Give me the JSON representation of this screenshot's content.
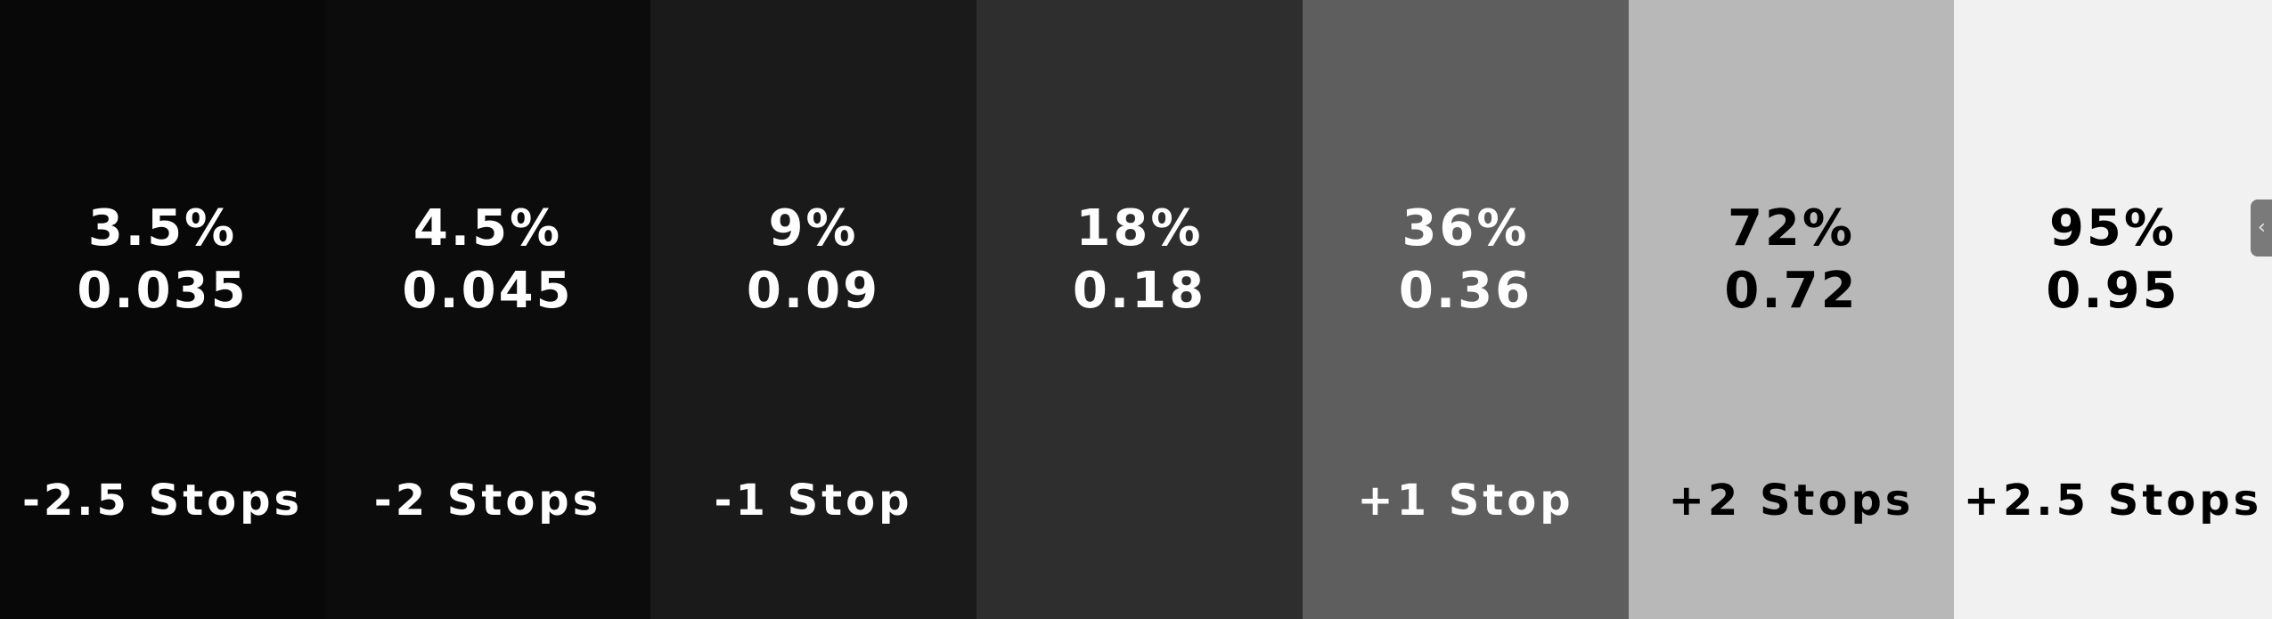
{
  "swatches": [
    {
      "percent": "3.5%",
      "decimal": "0.035",
      "stops": "-2.5 Stops",
      "bg": "#080808",
      "fg": "#ffffff"
    },
    {
      "percent": "4.5%",
      "decimal": "0.045",
      "stops": "-2 Stops",
      "bg": "#0c0c0c",
      "fg": "#ffffff"
    },
    {
      "percent": "9%",
      "decimal": "0.09",
      "stops": "-1 Stop",
      "bg": "#1a1a1a",
      "fg": "#ffffff"
    },
    {
      "percent": "18%",
      "decimal": "0.18",
      "stops": "",
      "bg": "#2e2e2e",
      "fg": "#ffffff"
    },
    {
      "percent": "36%",
      "decimal": "0.36",
      "stops": "+1 Stop",
      "bg": "#5e5e5e",
      "fg": "#ffffff"
    },
    {
      "percent": "72%",
      "decimal": "0.72",
      "stops": "+2 Stops",
      "bg": "#b8b8b8",
      "fg": "#000000"
    },
    {
      "percent": "95%",
      "decimal": "0.95",
      "stops": "+2.5 Stops",
      "bg": "#f1f1f1",
      "fg": "#000000"
    }
  ],
  "side_tab": {
    "icon": "chevron-left-icon",
    "bg": "#7a7a7a"
  }
}
